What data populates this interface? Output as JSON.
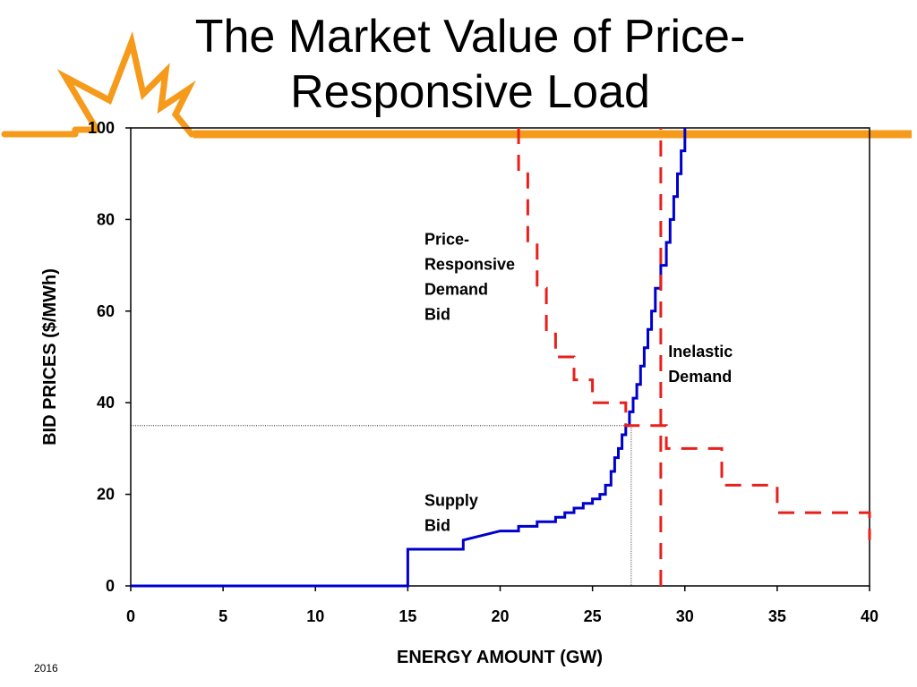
{
  "slide": {
    "title_line1": "The Market Value of Price-",
    "title_line2": "Responsive Load",
    "footer": "2016",
    "accent_color": "#f59a1a"
  },
  "chart_data": {
    "type": "line",
    "title": "The Market Value of Price-Responsive Load",
    "xlabel": "ENERGY AMOUNT (GW)",
    "ylabel": "BID PRICES ($/MWh)",
    "xlim": [
      0,
      40
    ],
    "ylim": [
      0,
      100
    ],
    "xticks": [
      0,
      5,
      10,
      15,
      20,
      25,
      30,
      35,
      40
    ],
    "yticks": [
      0,
      20,
      40,
      60,
      80,
      100
    ],
    "grid": false,
    "series": [
      {
        "name": "Supply Bid",
        "color": "#0000cc",
        "style": "solid",
        "points": [
          [
            0,
            0
          ],
          [
            15,
            0
          ],
          [
            15,
            8
          ],
          [
            18,
            8
          ],
          [
            18,
            10
          ],
          [
            20,
            12
          ],
          [
            21,
            12
          ],
          [
            21,
            13
          ],
          [
            22,
            13
          ],
          [
            22,
            14
          ],
          [
            23,
            14
          ],
          [
            23,
            15
          ],
          [
            23.5,
            15
          ],
          [
            23.5,
            16
          ],
          [
            24,
            16
          ],
          [
            24,
            17
          ],
          [
            24.5,
            17
          ],
          [
            24.5,
            18
          ],
          [
            25,
            18
          ],
          [
            25,
            19
          ],
          [
            25.4,
            19
          ],
          [
            25.4,
            20
          ],
          [
            25.7,
            20
          ],
          [
            25.7,
            22
          ],
          [
            26,
            22
          ],
          [
            26,
            25
          ],
          [
            26.2,
            25
          ],
          [
            26.2,
            28
          ],
          [
            26.4,
            28
          ],
          [
            26.4,
            30
          ],
          [
            26.6,
            30
          ],
          [
            26.6,
            33
          ],
          [
            26.8,
            33
          ],
          [
            26.8,
            35
          ],
          [
            27,
            35
          ],
          [
            27,
            38
          ],
          [
            27.2,
            38
          ],
          [
            27.2,
            41
          ],
          [
            27.4,
            41
          ],
          [
            27.4,
            44
          ],
          [
            27.6,
            44
          ],
          [
            27.6,
            48
          ],
          [
            27.8,
            48
          ],
          [
            27.8,
            52
          ],
          [
            28,
            52
          ],
          [
            28,
            56
          ],
          [
            28.2,
            56
          ],
          [
            28.2,
            60
          ],
          [
            28.4,
            60
          ],
          [
            28.4,
            65
          ],
          [
            28.7,
            65
          ],
          [
            28.7,
            70
          ],
          [
            29,
            70
          ],
          [
            29,
            75
          ],
          [
            29.2,
            75
          ],
          [
            29.2,
            80
          ],
          [
            29.4,
            80
          ],
          [
            29.4,
            85
          ],
          [
            29.6,
            85
          ],
          [
            29.6,
            90
          ],
          [
            29.8,
            90
          ],
          [
            29.8,
            95
          ],
          [
            30,
            95
          ],
          [
            30,
            100
          ]
        ]
      },
      {
        "name": "Price-Responsive Demand Bid",
        "color": "#e8201c",
        "style": "dashed",
        "points": [
          [
            21,
            100
          ],
          [
            21,
            90
          ],
          [
            21.5,
            90
          ],
          [
            21.5,
            75
          ],
          [
            22,
            75
          ],
          [
            22,
            65
          ],
          [
            22.5,
            65
          ],
          [
            22.5,
            55
          ],
          [
            23,
            55
          ],
          [
            23,
            50
          ],
          [
            24,
            50
          ],
          [
            24,
            45
          ],
          [
            25,
            45
          ],
          [
            25,
            40
          ],
          [
            26.8,
            40
          ],
          [
            26.8,
            35
          ],
          [
            29,
            35
          ],
          [
            29,
            30
          ],
          [
            32,
            30
          ],
          [
            32,
            22
          ],
          [
            35,
            22
          ],
          [
            35,
            16
          ],
          [
            40,
            16
          ],
          [
            40,
            10
          ]
        ]
      },
      {
        "name": "Inelastic Demand",
        "color": "#e8201c",
        "style": "dashed",
        "points": [
          [
            28.7,
            0
          ],
          [
            28.7,
            100
          ]
        ]
      }
    ],
    "clearing_point": {
      "x": 27.1,
      "y": 35
    },
    "annotations": [
      {
        "label": "price-responsive-demand-label",
        "lines": [
          "Price-",
          "Responsive",
          "Demand",
          "Bid"
        ],
        "x": 15.9,
        "y": 74.5
      },
      {
        "label": "inelastic-demand-label",
        "lines": [
          "Inelastic",
          "Demand"
        ],
        "x": 29.1,
        "y": 50
      },
      {
        "label": "supply-bid-label",
        "lines": [
          "Supply",
          "Bid"
        ],
        "x": 15.9,
        "y": 17.5
      }
    ]
  }
}
